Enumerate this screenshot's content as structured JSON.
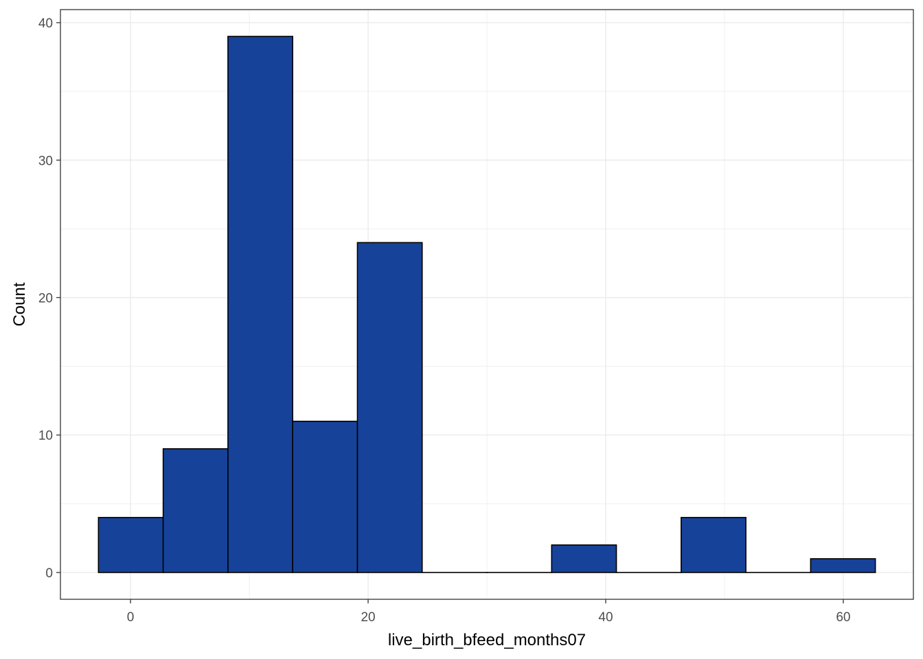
{
  "chart_data": {
    "type": "bar",
    "subtype": "histogram",
    "xlabel": "live_birth_bfeed_months07",
    "ylabel": "Count",
    "xlim": [
      -5.9,
      65.9
    ],
    "ylim": [
      -1.95,
      40.95
    ],
    "x_ticks": [
      0,
      20,
      40,
      60
    ],
    "y_ticks": [
      0,
      10,
      20,
      30,
      40
    ],
    "x_minor_ticks": [
      -10,
      10,
      30,
      50,
      70
    ],
    "y_minor_ticks": [
      5,
      15,
      25,
      35
    ],
    "x_tick_labels": [
      "0",
      "20",
      "40",
      "60"
    ],
    "y_tick_labels": [
      "0",
      "10",
      "20",
      "30",
      "40"
    ],
    "grid": true,
    "bins": [
      {
        "x0": -2.7,
        "x1": 2.75,
        "count": 4
      },
      {
        "x0": 2.75,
        "x1": 8.2,
        "count": 9
      },
      {
        "x0": 8.2,
        "x1": 13.65,
        "count": 39
      },
      {
        "x0": 13.65,
        "x1": 19.1,
        "count": 11
      },
      {
        "x0": 19.1,
        "x1": 24.55,
        "count": 24
      },
      {
        "x0": 24.55,
        "x1": 30.0,
        "count": 0
      },
      {
        "x0": 30.0,
        "x1": 35.45,
        "count": 0
      },
      {
        "x0": 35.45,
        "x1": 40.9,
        "count": 2
      },
      {
        "x0": 40.9,
        "x1": 46.35,
        "count": 0
      },
      {
        "x0": 46.35,
        "x1": 51.8,
        "count": 4
      },
      {
        "x0": 51.8,
        "x1": 57.25,
        "count": 0
      },
      {
        "x0": 57.25,
        "x1": 62.7,
        "count": 1
      }
    ],
    "colors": {
      "fill": "#174299",
      "outline": "#000000",
      "grid": "#ebebeb",
      "panel_border": "#333333"
    }
  }
}
